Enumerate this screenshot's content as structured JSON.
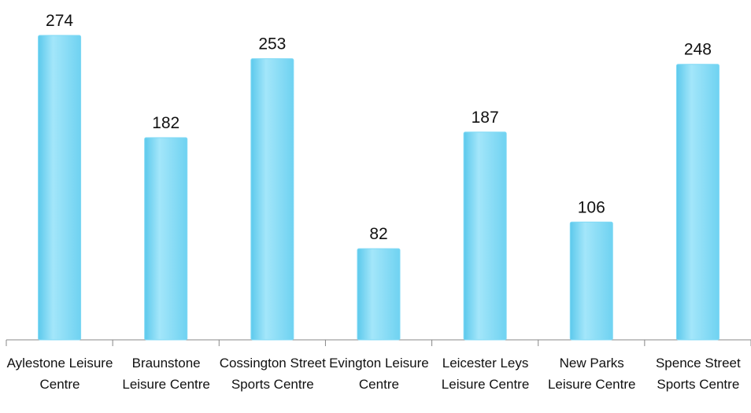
{
  "chart_data": {
    "type": "bar",
    "categories": [
      "Aylestone Leisure Centre",
      "Braunstone Leisure Centre",
      "Cossington Street Sports Centre",
      "Evington Leisure Centre",
      "Leicester Leys Leisure Centre",
      "New Parks Leisure Centre",
      "Spence Street Sports Centre"
    ],
    "values": [
      274,
      182,
      253,
      82,
      187,
      106,
      248
    ],
    "color": "#7fd9f5"
  }
}
